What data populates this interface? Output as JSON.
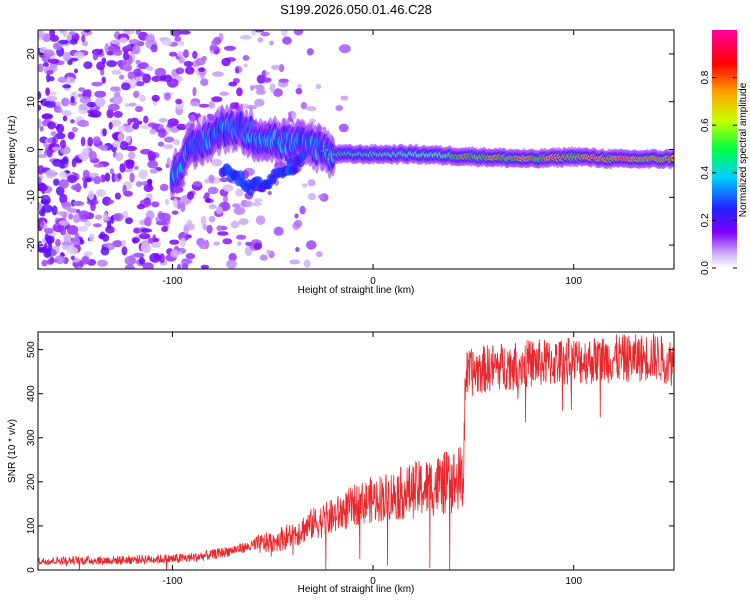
{
  "title": "S199.2026.050.01.46.C28",
  "chart_data": [
    {
      "type": "heatmap",
      "xlabel": "Height of straight line (km)",
      "ylabel": "Frequency (Hz)",
      "xlim": [
        -167,
        150
      ],
      "ylim": [
        -25,
        25
      ],
      "xticks": [
        -100,
        0,
        100
      ],
      "yticks": [
        -20,
        -10,
        0,
        10,
        20
      ],
      "colorbar": {
        "label": "Normalized spectral amplitude",
        "range": [
          0,
          1
        ],
        "ticks": [
          0.0,
          0.2,
          0.4,
          0.6,
          0.8
        ],
        "tick_labels": [
          "0.0",
          "0.2",
          "0.4",
          "0.6",
          "0.8"
        ]
      },
      "description_of_features": {
        "noise_region_x": [
          -167,
          -30
        ],
        "signal_ridge": [
          [
            -100,
            -5
          ],
          [
            -90,
            0
          ],
          [
            -80,
            3
          ],
          [
            -70,
            5
          ],
          [
            -60,
            3
          ],
          [
            -50,
            2
          ],
          [
            -40,
            1
          ],
          [
            -30,
            1
          ],
          [
            -20,
            -1
          ],
          [
            -10,
            -1
          ],
          [
            0,
            -1
          ],
          [
            20,
            -1
          ],
          [
            50,
            -1.5
          ],
          [
            80,
            -2
          ],
          [
            100,
            -1.5
          ],
          [
            120,
            -2
          ],
          [
            150,
            -2
          ]
        ],
        "secondary_branch": [
          [
            -75,
            -4
          ],
          [
            -60,
            -8
          ],
          [
            -45,
            -5
          ],
          [
            -35,
            -2
          ]
        ],
        "peak_amplitude_regions": [
          [
            45,
            -1.5
          ],
          [
            60,
            -1.5
          ],
          [
            75,
            -2
          ],
          [
            90,
            -2.5
          ],
          [
            110,
            -1.5
          ],
          [
            125,
            -2
          ]
        ]
      }
    },
    {
      "type": "line",
      "xlabel": "Height of straight line (km)",
      "ylabel": "SNR (10 * v/v)",
      "xlim": [
        -167,
        150
      ],
      "ylim": [
        0,
        540
      ],
      "xticks": [
        -100,
        0,
        100
      ],
      "yticks": [
        0,
        100,
        200,
        300,
        400,
        500
      ],
      "color": "#e8282d",
      "series": [
        {
          "name": "SNR",
          "x": [
            -167,
            -150,
            -130,
            -110,
            -100,
            -90,
            -80,
            -70,
            -60,
            -50,
            -40,
            -30,
            -20,
            -10,
            0,
            10,
            20,
            30,
            40,
            45,
            46,
            50,
            60,
            70,
            80,
            90,
            100,
            110,
            120,
            130,
            140,
            150
          ],
          "y": [
            20,
            22,
            22,
            25,
            25,
            28,
            35,
            45,
            55,
            65,
            80,
            105,
            120,
            145,
            160,
            170,
            180,
            190,
            200,
            210,
            440,
            450,
            460,
            465,
            470,
            470,
            475,
            475,
            480,
            480,
            485,
            470
          ]
        }
      ]
    }
  ]
}
